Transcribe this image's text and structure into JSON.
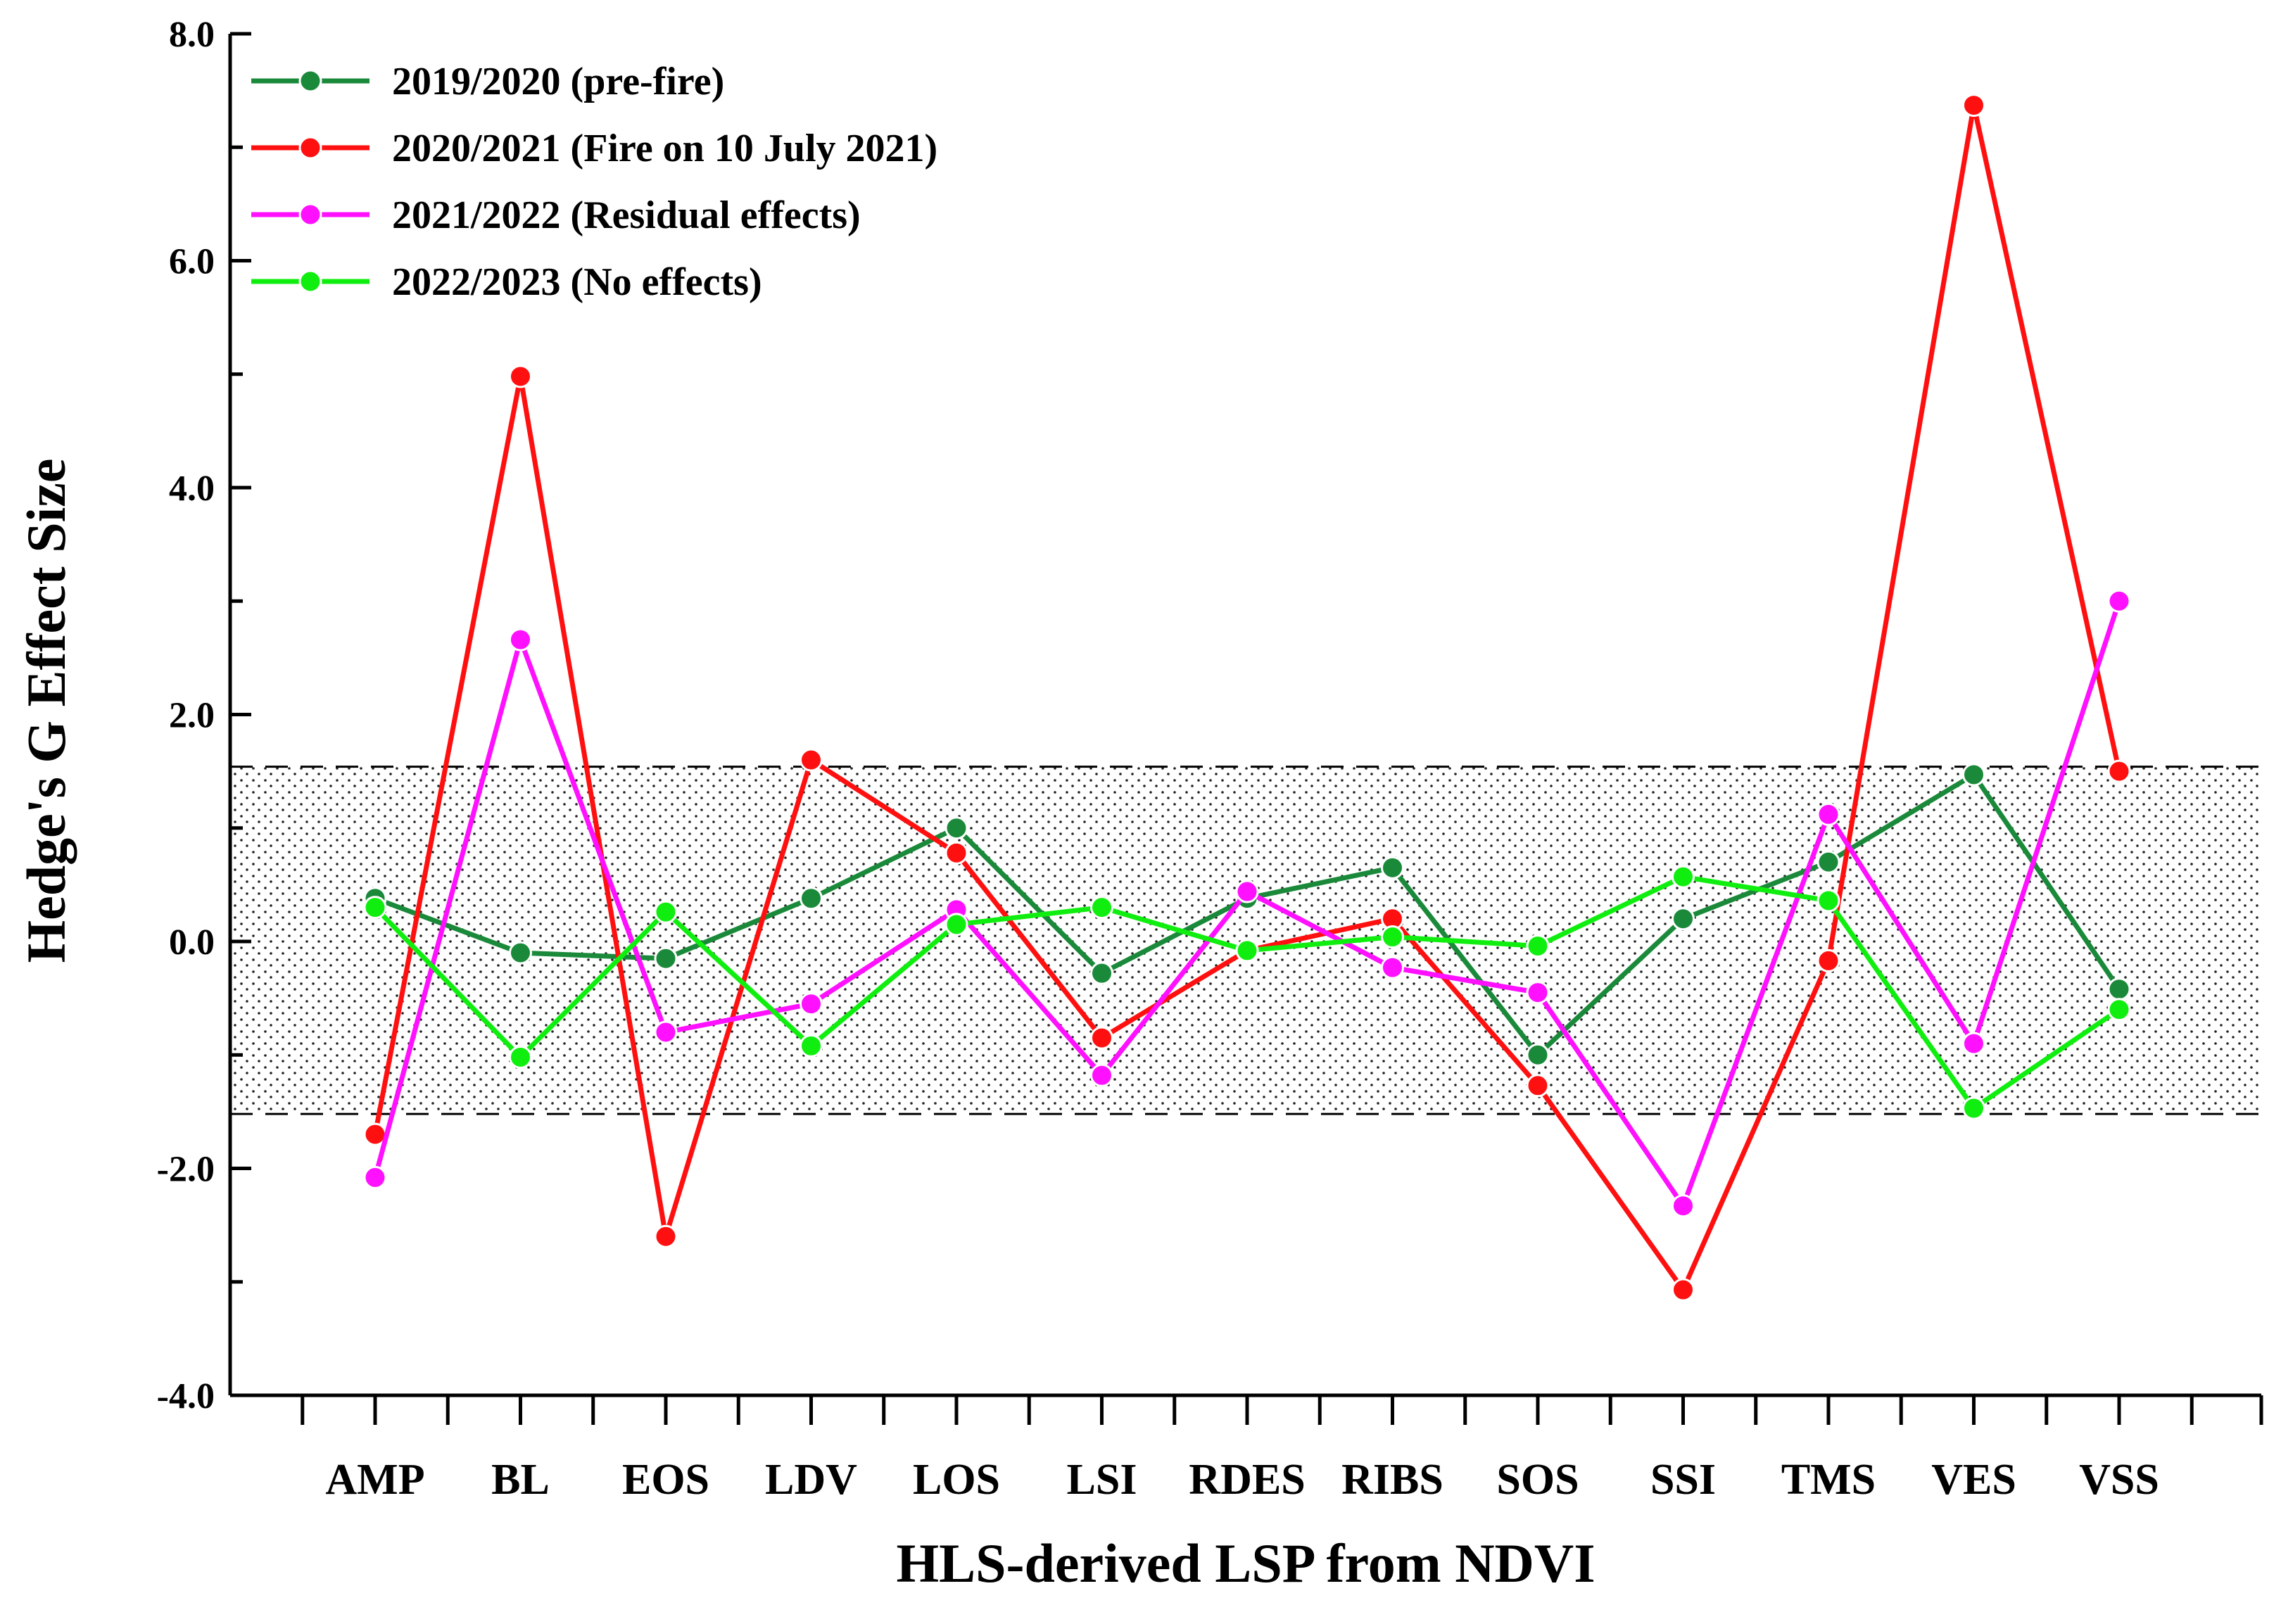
{
  "chart_data": {
    "type": "line",
    "title": "",
    "xlabel": "HLS-derived LSP from NDVI",
    "ylabel": "Hedge's G Effect Size",
    "ylim": [
      -4.0,
      8.0
    ],
    "yticks": [
      -4.0,
      -2.0,
      0.0,
      2.0,
      4.0,
      6.0,
      8.0
    ],
    "ytick_labels": [
      "-4.0",
      "-2.0",
      "0.0",
      "2.0",
      "4.0",
      "6.0",
      "8.0"
    ],
    "grid": false,
    "legend_position": "top-left",
    "categories": [
      "AMP",
      "BL",
      "EOS",
      "LDV",
      "LOS",
      "LSI",
      "RDES",
      "RIBS",
      "SOS",
      "SSI",
      "TMS",
      "VES",
      "VSS"
    ],
    "threshold_band": {
      "lower": -1.52,
      "upper": 1.54,
      "pattern": "dotted"
    },
    "series": [
      {
        "name": "2019/2020 (pre-fire)",
        "color": "#1a8a3a",
        "values": [
          0.38,
          -0.1,
          -0.15,
          0.38,
          1.0,
          -0.28,
          0.38,
          0.65,
          -1.0,
          0.2,
          0.7,
          1.47,
          -0.42
        ]
      },
      {
        "name": "2020/2021 (Fire on 10 July 2021)",
        "color": "#ff1010",
        "values": [
          -1.7,
          4.98,
          -2.6,
          1.6,
          0.78,
          -0.85,
          -0.08,
          0.2,
          -1.27,
          -3.07,
          -0.17,
          7.37,
          1.5
        ]
      },
      {
        "name": "2021/2022 (Residual effects)",
        "color": "#ff10ff",
        "values": [
          -2.08,
          2.66,
          -0.8,
          -0.55,
          0.28,
          -1.18,
          0.44,
          -0.23,
          -0.45,
          -2.33,
          1.12,
          -0.9,
          3.0
        ]
      },
      {
        "name": "2022/2023 (No effects)",
        "color": "#10ee10",
        "values": [
          0.3,
          -1.02,
          0.26,
          -0.92,
          0.15,
          0.3,
          -0.08,
          0.04,
          -0.04,
          0.57,
          0.36,
          -1.47,
          -0.6
        ]
      }
    ]
  }
}
